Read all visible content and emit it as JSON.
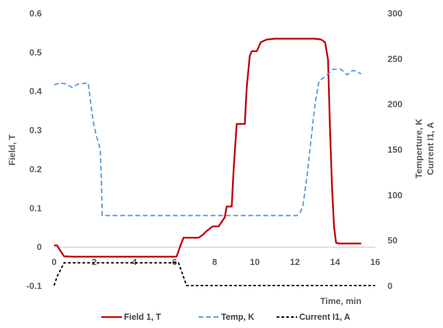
{
  "chart_data": {
    "type": "line",
    "xlabel": "Time, min",
    "ylabel_left": "Field, T",
    "ylabel_right": [
      "Temperture, K",
      "Current I1, A"
    ],
    "xlim": [
      0,
      16
    ],
    "ylim_left": [
      -0.1,
      0.6
    ],
    "ylim_right": [
      0,
      300
    ],
    "x_ticks": [
      "0",
      "2",
      "4",
      "6",
      "8",
      "10",
      "12",
      "14",
      "16"
    ],
    "y_ticks_left": [
      "-0.1",
      "0",
      "0.1",
      "0.2",
      "0.3",
      "0.4",
      "0.5",
      "0.6"
    ],
    "y_ticks_right": [
      "0",
      "50",
      "100",
      "150",
      "200",
      "250",
      "300"
    ],
    "grid": false,
    "legend_position": "bottom",
    "colors": {
      "field": "#c00000",
      "temp": "#5b9bd5",
      "current": "#000000"
    },
    "series": [
      {
        "name": "Field 1, T",
        "axis": "left",
        "style": "solid",
        "points": [
          [
            0,
            0.003
          ],
          [
            0.15,
            0.003
          ],
          [
            0.3,
            -0.01
          ],
          [
            0.5,
            -0.025
          ],
          [
            1,
            -0.026
          ],
          [
            2.3,
            -0.026
          ],
          [
            4,
            -0.026
          ],
          [
            6,
            -0.026
          ],
          [
            6.1,
            -0.026
          ],
          [
            6.35,
            0.01
          ],
          [
            6.45,
            0.023
          ],
          [
            7.2,
            0.023
          ],
          [
            7.4,
            0.03
          ],
          [
            7.6,
            0.04
          ],
          [
            7.9,
            0.052
          ],
          [
            8.2,
            0.052
          ],
          [
            8.5,
            0.075
          ],
          [
            8.6,
            0.103
          ],
          [
            8.85,
            0.103
          ],
          [
            8.95,
            0.2
          ],
          [
            9.1,
            0.315
          ],
          [
            9.5,
            0.315
          ],
          [
            9.6,
            0.41
          ],
          [
            9.75,
            0.49
          ],
          [
            9.85,
            0.502
          ],
          [
            10.1,
            0.502
          ],
          [
            10.3,
            0.525
          ],
          [
            10.6,
            0.532
          ],
          [
            11,
            0.534
          ],
          [
            12,
            0.534
          ],
          [
            13,
            0.534
          ],
          [
            13.3,
            0.532
          ],
          [
            13.5,
            0.525
          ],
          [
            13.65,
            0.48
          ],
          [
            13.75,
            0.3
          ],
          [
            13.85,
            0.15
          ],
          [
            13.95,
            0.05
          ],
          [
            14.05,
            0.01
          ],
          [
            14.2,
            0.008
          ],
          [
            15.3,
            0.008
          ]
        ]
      },
      {
        "name": "Temp, K",
        "axis": "right",
        "style": "dashed",
        "points": [
          [
            0,
            221
          ],
          [
            0.3,
            223
          ],
          [
            0.6,
            222
          ],
          [
            0.9,
            218
          ],
          [
            1.2,
            222
          ],
          [
            1.7,
            223
          ],
          [
            1.8,
            205
          ],
          [
            1.9,
            188
          ],
          [
            2,
            175
          ],
          [
            2.1,
            165
          ],
          [
            2.2,
            158
          ],
          [
            2.3,
            150
          ],
          [
            2.35,
            120
          ],
          [
            2.4,
            77
          ],
          [
            6,
            77
          ],
          [
            8,
            77
          ],
          [
            10,
            77
          ],
          [
            12.1,
            77
          ],
          [
            12.25,
            80
          ],
          [
            12.4,
            88
          ],
          [
            12.6,
            120
          ],
          [
            12.8,
            160
          ],
          [
            13,
            200
          ],
          [
            13.2,
            225
          ],
          [
            13.5,
            230
          ],
          [
            13.9,
            238
          ],
          [
            14.3,
            238
          ],
          [
            14.6,
            232
          ],
          [
            14.9,
            237
          ],
          [
            15.3,
            233
          ]
        ]
      },
      {
        "name": "Current I1, A",
        "axis": "right",
        "style": "dashed",
        "points": [
          [
            0,
            0
          ],
          [
            0.15,
            10
          ],
          [
            0.5,
            25
          ],
          [
            6,
            25
          ],
          [
            6.2,
            25
          ],
          [
            6.6,
            0
          ],
          [
            16,
            0
          ]
        ]
      }
    ]
  }
}
